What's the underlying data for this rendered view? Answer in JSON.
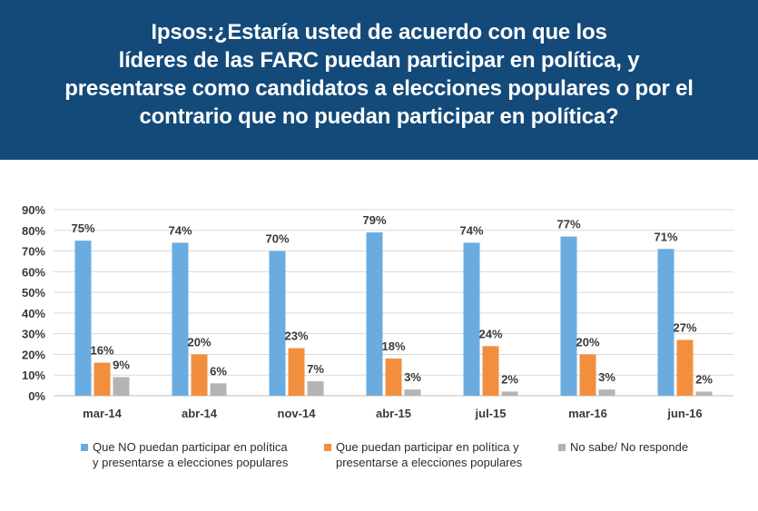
{
  "header": {
    "title_lines": [
      "Ipsos:¿Estaría usted de acuerdo con que los",
      "líderes de las FARC puedan participar en política, y",
      "presentarse como candidatos a elecciones populares o por el",
      "contrario que no puedan participar en política?"
    ]
  },
  "colors": {
    "header_bg": "#134a7a",
    "series_blue": "#6aace0",
    "series_orange": "#f28f3f",
    "series_gray": "#b4b4b4"
  },
  "chart_data": {
    "type": "bar",
    "title": "Ipsos:¿Estaría usted de acuerdo con que los líderes de las FARC puedan participar en política, y presentarse como candidatos a elecciones populares o por el contrario que no puedan participar en política?",
    "categories": [
      "mar-14",
      "abr-14",
      "nov-14",
      "abr-15",
      "jul-15",
      "mar-16",
      "jun-16"
    ],
    "series": [
      {
        "name": "Que NO puedan participar en política y presentarse a elecciones populares",
        "legend_lines": [
          "Que NO puedan participar en política",
          "y presentarse a elecciones populares"
        ],
        "color": "#6aace0",
        "values": [
          75,
          74,
          70,
          79,
          74,
          77,
          71
        ],
        "labels": [
          "75%",
          "74%",
          "70%",
          "79%",
          "74%",
          "77%",
          "71%"
        ]
      },
      {
        "name": "Que puedan participar en política y presentarse a elecciones populares",
        "legend_lines": [
          "Que puedan participar en política y",
          "presentarse a elecciones populares"
        ],
        "color": "#f28f3f",
        "values": [
          16,
          20,
          23,
          18,
          24,
          20,
          27
        ],
        "labels": [
          "16%",
          "20%",
          "23%",
          "18%",
          "24%",
          "20%",
          "27%"
        ]
      },
      {
        "name": "No sabe/ No responde",
        "legend_lines": [
          "No sabe/ No responde"
        ],
        "color": "#b4b4b4",
        "values": [
          9,
          6,
          7,
          3,
          2,
          3,
          2
        ],
        "labels": [
          "9%",
          "6%",
          "7%",
          "3%",
          "2%",
          "3%",
          "2%"
        ]
      }
    ],
    "yticks": [
      "0%",
      "10%",
      "20%",
      "30%",
      "40%",
      "50%",
      "60%",
      "70%",
      "80%",
      "90%"
    ],
    "ylim": [
      0,
      90
    ],
    "grid": true,
    "legend_position": "bottom",
    "xlabel": "",
    "ylabel": ""
  }
}
